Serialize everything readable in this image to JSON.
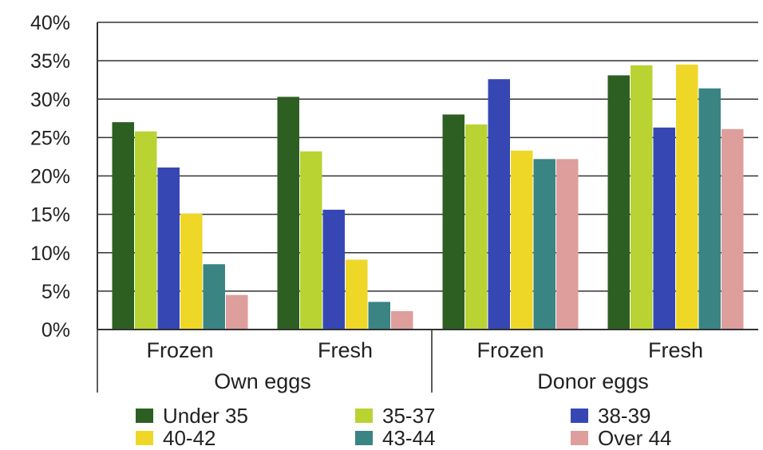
{
  "chart_data": {
    "type": "bar",
    "title": "",
    "xlabel": "",
    "ylabel": "",
    "ylim": [
      0,
      40
    ],
    "y_ticks": [
      "0%",
      "5%",
      "10%",
      "15%",
      "20%",
      "25%",
      "30%",
      "35%",
      "40%"
    ],
    "grid": true,
    "legend_position": "bottom",
    "groups": [
      {
        "label": "Own eggs",
        "categories": [
          "Frozen",
          "Fresh"
        ]
      },
      {
        "label": "Donor eggs",
        "categories": [
          "Frozen",
          "Fresh"
        ]
      }
    ],
    "categories": [
      "Frozen",
      "Fresh",
      "Frozen",
      "Fresh"
    ],
    "series": [
      {
        "name": "Under 35",
        "color": "#2d5f23",
        "values": [
          27.0,
          30.3,
          28.0,
          33.1
        ]
      },
      {
        "name": "35-37",
        "color": "#b8d332",
        "values": [
          25.8,
          23.2,
          26.7,
          34.4
        ]
      },
      {
        "name": "38-39",
        "color": "#3647b4",
        "values": [
          21.1,
          15.6,
          32.6,
          26.3
        ]
      },
      {
        "name": "40-42",
        "color": "#efd728",
        "values": [
          15.1,
          9.1,
          23.3,
          34.5
        ]
      },
      {
        "name": "43-44",
        "color": "#3a8484",
        "values": [
          8.5,
          3.6,
          22.2,
          31.4
        ]
      },
      {
        "name": "Over 44",
        "color": "#dd9e9c",
        "values": [
          4.5,
          2.4,
          22.2,
          26.1
        ]
      }
    ]
  }
}
